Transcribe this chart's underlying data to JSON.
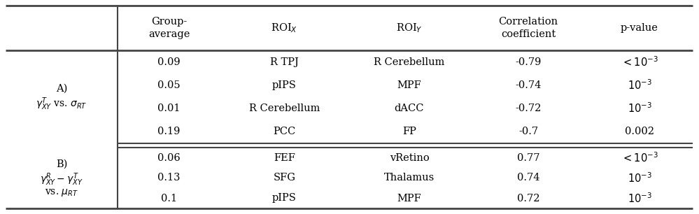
{
  "header_row": [
    "Group-\naverage",
    "ROI$_X$",
    "ROI$_Y$",
    "Correlation\ncoefficient",
    "p-value"
  ],
  "section_A_label_lines": [
    "A)",
    "$\\gamma^T_{XY}$ vs. $\\sigma_{RT}$"
  ],
  "section_A_rows": [
    [
      "0.09",
      "R TPJ",
      "R Cerebellum",
      "-0.79",
      "$< 10^{-3}$"
    ],
    [
      "0.05",
      "pIPS",
      "MPF",
      "-0.74",
      "$10^{-3}$"
    ],
    [
      "0.01",
      "R Cerebellum",
      "dACC",
      "-0.72",
      "$10^{-3}$"
    ],
    [
      "0.19",
      "PCC",
      "FP",
      "-0.7",
      "0.002"
    ]
  ],
  "section_B_label_lines": [
    "B)",
    "$\\gamma^R_{XY} - \\gamma^T_{XY}$",
    "vs. $\\mu_{RT}$"
  ],
  "section_B_rows": [
    [
      "0.06",
      "FEF",
      "vRetino",
      "0.77",
      "$< 10^{-3}$"
    ],
    [
      "0.13",
      "SFG",
      "Thalamus",
      "0.74",
      "$10^{-3}$"
    ],
    [
      "0.1",
      "pIPS",
      "MPF",
      "0.72",
      "$10^{-3}$"
    ]
  ],
  "bg_color": "#ffffff",
  "text_color": "#000000",
  "line_color": "#444444",
  "fontsize": 10.5
}
